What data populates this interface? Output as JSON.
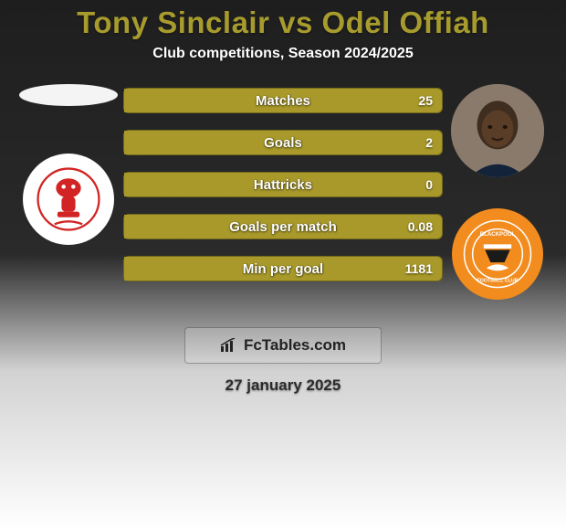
{
  "header": {
    "title": "Tony Sinclair vs Odel Offiah",
    "title_color": "#a79b2e",
    "subtitle": "Club competitions, Season 2024/2025",
    "subtitle_color": "#ffffff"
  },
  "background": {
    "top_color": "#1e1e1e",
    "bottom_color": "#ffffff",
    "gradient_split": 0.58
  },
  "players": {
    "left": {
      "name": "Tony Sinclair",
      "avatar_bg": "#f4f4f4",
      "club": "Lincoln City",
      "club_bg": "#ffffff",
      "club_accent": "#d22424"
    },
    "right": {
      "name": "Odel Offiah",
      "avatar_bg": "#7b6a5e",
      "club": "Blackpool",
      "club_bg": "#f28c1f",
      "club_accent": "#ffffff"
    }
  },
  "bars": {
    "fill_color_left": "#a8992a",
    "fill_color_right": "#a8992a",
    "track_color": "#9a8c26",
    "border_color": "rgba(0,0,0,0.25)",
    "label_color": "#ffffff",
    "items": [
      {
        "label": "Matches",
        "left": "",
        "right": "25",
        "left_pct": 0,
        "right_pct": 100
      },
      {
        "label": "Goals",
        "left": "",
        "right": "2",
        "left_pct": 0,
        "right_pct": 100
      },
      {
        "label": "Hattricks",
        "left": "",
        "right": "0",
        "left_pct": 0,
        "right_pct": 100
      },
      {
        "label": "Goals per match",
        "left": "",
        "right": "0.08",
        "left_pct": 0,
        "right_pct": 100
      },
      {
        "label": "Min per goal",
        "left": "",
        "right": "1181",
        "left_pct": 0,
        "right_pct": 100
      }
    ]
  },
  "footer": {
    "brand": "FcTables.com",
    "brand_box_bg": "rgba(255,255,255,0.2)",
    "date": "27 january 2025",
    "date_color": "#2b2b2b"
  }
}
